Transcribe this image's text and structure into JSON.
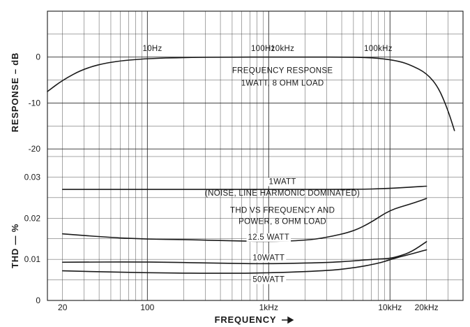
{
  "chart_data": {
    "type": "line",
    "title": "",
    "xlabel": "FREQUENCY",
    "x_scale": "log",
    "xlim": [
      15,
      40000
    ],
    "x_ticks": [
      {
        "value": 20,
        "label": "20"
      },
      {
        "value": 100,
        "label": "100"
      },
      {
        "value": 1000,
        "label": "1kHz"
      },
      {
        "value": 10000,
        "label": "10kHz"
      },
      {
        "value": 20000,
        "label": "20kHz"
      }
    ],
    "grid": true,
    "panels": [
      {
        "name": "response",
        "ylabel": "RESPONSE – dB",
        "ylim": [
          -25,
          10
        ],
        "y_ticks": [
          "0",
          "-10",
          "-20"
        ],
        "y_tick_values": [
          0,
          -10,
          -20
        ],
        "annotations": [
          {
            "text": "10Hz",
            "x": 110,
            "y": 1.3
          },
          {
            "text": "100Hz",
            "x": 900,
            "y": 1.3
          },
          {
            "text": "10kHz",
            "x": 1300,
            "y": 1.3
          },
          {
            "text": "100kHz",
            "x": 8000,
            "y": 1.3
          },
          {
            "text": "FREQUENCY RESPONSE",
            "x": 1300,
            "y": -3.5
          },
          {
            "text": "1WATT, 8 OHM LOAD",
            "x": 1300,
            "y": -6.2
          }
        ],
        "series": [
          {
            "name": "",
            "x": [
              15,
              20,
              30,
              50,
              100,
              200,
              500,
              1000,
              2000,
              5000,
              8000,
              12000,
              15000,
              20000,
              25000,
              30000,
              34000
            ],
            "y": [
              -7.5,
              -5,
              -2.5,
              -1,
              -0.3,
              -0.1,
              0,
              0,
              0,
              0,
              -0.2,
              -0.9,
              -1.8,
              -3.5,
              -6.5,
              -11.5,
              -16
            ]
          }
        ]
      },
      {
        "name": "thd",
        "ylabel": "THD — %",
        "ylim": [
          0,
          0.035
        ],
        "y_ticks": [
          "0",
          "0.01",
          "0.02",
          "0.03"
        ],
        "y_tick_values": [
          0,
          0.01,
          0.02,
          0.03
        ],
        "annotations": [
          {
            "text": "(NOISE, LINE HARMONIC DOMINATED)",
            "x": 1300,
            "y": 0.0255
          },
          {
            "text": "THD VS FREQUENCY AND",
            "x": 1300,
            "y": 0.0213
          },
          {
            "text": "POWER, 8 OHM LOAD",
            "x": 1300,
            "y": 0.0186
          }
        ],
        "series": [
          {
            "name": "1WATT",
            "label_at": {
              "x": 1300,
              "y": 0.0283
            },
            "x": [
              20,
              100,
              1000,
              5000,
              10000,
              20000
            ],
            "y": [
              0.027,
              0.027,
              0.027,
              0.027,
              0.0272,
              0.0278
            ]
          },
          {
            "name": "12.5 WATT",
            "label_at": {
              "x": 1000,
              "y": 0.0148
            },
            "x": [
              20,
              50,
              100,
              200,
              500,
              1000,
              2000,
              3000,
              5000,
              7000,
              10000,
              15000,
              20000
            ],
            "y": [
              0.0162,
              0.0153,
              0.0149,
              0.0148,
              0.0145,
              0.0143,
              0.0146,
              0.0153,
              0.0168,
              0.019,
              0.022,
              0.0235,
              0.0248
            ]
          },
          {
            "name": "10WATT",
            "label_at": {
              "x": 1000,
              "y": 0.0098
            },
            "x": [
              20,
              100,
              500,
              1000,
              3000,
              5000,
              8000,
              10000,
              12000,
              15000,
              20000
            ],
            "y": [
              0.0093,
              0.0094,
              0.009,
              0.0089,
              0.0092,
              0.0096,
              0.0101,
              0.0102,
              0.0108,
              0.0118,
              0.0143
            ]
          },
          {
            "name": "50WATT",
            "label_at": {
              "x": 1000,
              "y": 0.0045
            },
            "x": [
              20,
              100,
              500,
              1000,
              3000,
              5000,
              8000,
              10000,
              12000,
              15000,
              20000
            ],
            "y": [
              0.0072,
              0.0067,
              0.0066,
              0.0067,
              0.0072,
              0.0079,
              0.009,
              0.0099,
              0.0106,
              0.0113,
              0.0123
            ]
          }
        ]
      }
    ]
  }
}
